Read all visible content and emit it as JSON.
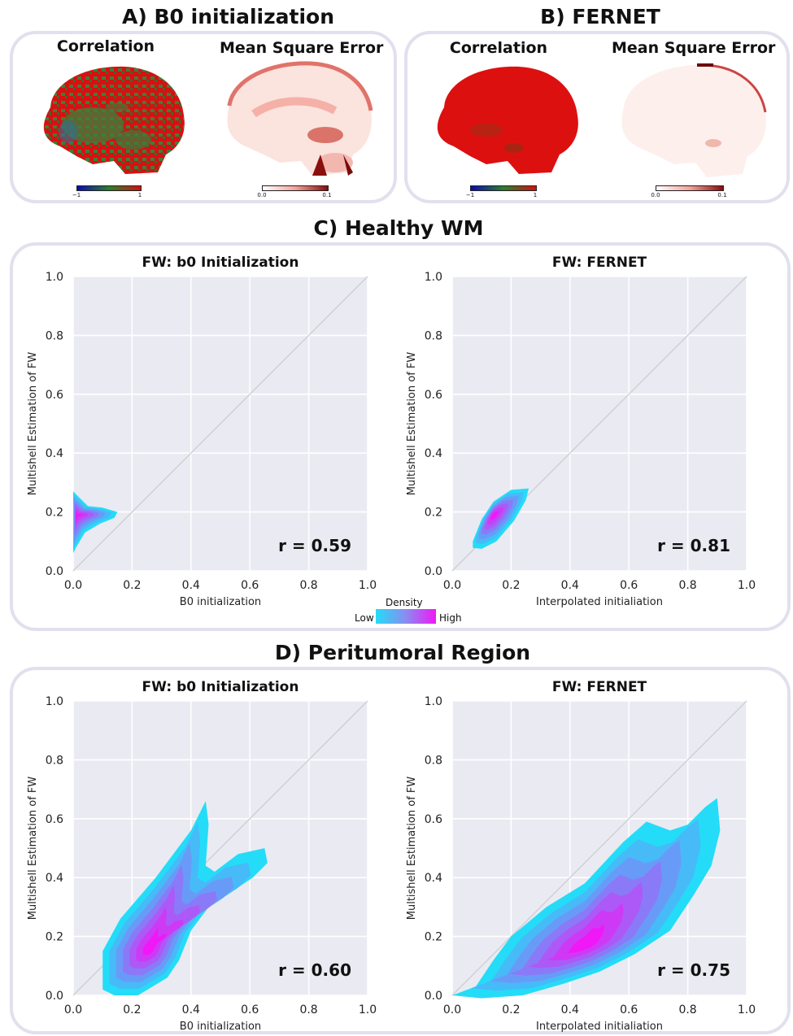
{
  "panels": {
    "a_title": "A) B0 initialization",
    "b_title": "B) FERNET",
    "c_title": "C) Healthy WM",
    "d_title": "D) Peritumoral Region",
    "map_corr_label": "Correlation",
    "map_mse_label": "Mean Square Error",
    "corr_cbar_min": "−1",
    "corr_cbar_max": "1",
    "mse_cbar_min": "0.0",
    "mse_cbar_max": "0.1"
  },
  "legend": {
    "title": "Density",
    "low": "Low",
    "high": "High"
  },
  "colors": {
    "plot_bg": "#eaeaf2",
    "grid": "#ffffff",
    "identity_line": "#cfcfd6",
    "density_low": "#24dcf8",
    "density_high": "#f018f6",
    "corr_colormap": [
      "#0a0ab4",
      "#2d7f2d",
      "#d01010"
    ],
    "mse_colormap": [
      "#ffffff",
      "#f2a39a",
      "#8a0a0a"
    ]
  },
  "chart_data": [
    {
      "type": "density",
      "title": "FW: b0 Initialization",
      "xlabel": "B0 initialization",
      "ylabel": "Multishell Estimation of FW",
      "xlim": [
        0,
        1
      ],
      "ylim": [
        0,
        1
      ],
      "xticks": [
        "0.0",
        "0.2",
        "0.4",
        "0.6",
        "0.8",
        "1.0"
      ],
      "yticks": [
        "0.0",
        "0.2",
        "0.4",
        "0.6",
        "0.8",
        "1.0"
      ],
      "annotation": "r = 0.59",
      "r": 0.59,
      "grid": true,
      "identity_line": true,
      "density_peak": [
        0.01,
        0.19
      ]
    },
    {
      "type": "density",
      "title": "FW: FERNET",
      "xlabel": "Interpolated initialiation",
      "ylabel": "Multishell Estimation of FW",
      "xlim": [
        0,
        1
      ],
      "ylim": [
        0,
        1
      ],
      "xticks": [
        "0.0",
        "0.2",
        "0.4",
        "0.6",
        "0.8",
        "1.0"
      ],
      "yticks": [
        "0.0",
        "0.2",
        "0.4",
        "0.6",
        "0.8",
        "1.0"
      ],
      "annotation": "r = 0.81",
      "r": 0.81,
      "grid": true,
      "identity_line": true,
      "density_peak": [
        0.14,
        0.19
      ]
    },
    {
      "type": "density",
      "title": "FW: b0 Initialization",
      "xlabel": "B0 initialization",
      "ylabel": "Multishell Estimation of FW",
      "xlim": [
        0,
        1
      ],
      "ylim": [
        0,
        1
      ],
      "xticks": [
        "0.0",
        "0.2",
        "0.4",
        "0.6",
        "0.8",
        "1.0"
      ],
      "yticks": [
        "0.0",
        "0.2",
        "0.4",
        "0.6",
        "0.8",
        "1.0"
      ],
      "annotation": "r = 0.60",
      "r": 0.6,
      "grid": true,
      "identity_line": true,
      "density_peak": [
        0.26,
        0.16
      ]
    },
    {
      "type": "density",
      "title": "FW: FERNET",
      "xlabel": "Interpolated initialiation",
      "ylabel": "Multishell Estimation of FW",
      "xlim": [
        0,
        1
      ],
      "ylim": [
        0,
        1
      ],
      "xticks": [
        "0.0",
        "0.2",
        "0.4",
        "0.6",
        "0.8",
        "1.0"
      ],
      "yticks": [
        "0.0",
        "0.2",
        "0.4",
        "0.6",
        "0.8",
        "1.0"
      ],
      "annotation": "r = 0.75",
      "r": 0.75,
      "grid": true,
      "identity_line": true,
      "density_peak": [
        0.45,
        0.17
      ]
    }
  ]
}
